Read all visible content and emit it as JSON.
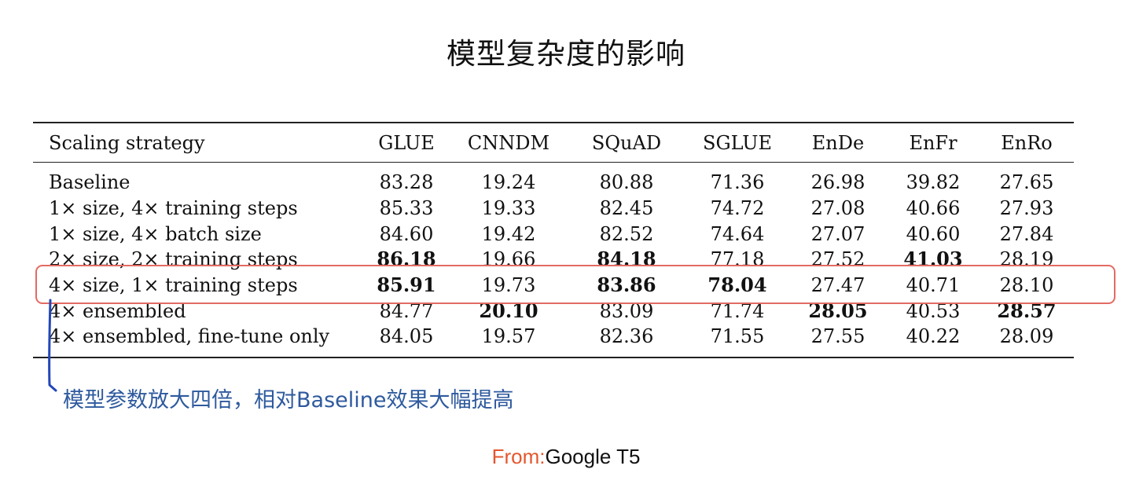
{
  "title": "模型复杂度的影响",
  "table": {
    "columns": [
      "Scaling strategy",
      "GLUE",
      "CNNDM",
      "SQuAD",
      "SGLUE",
      "EnDe",
      "EnFr",
      "EnRo"
    ],
    "rows": [
      {
        "strategy": "Baseline",
        "values": [
          "83.28",
          "19.24",
          "80.88",
          "71.36",
          "26.98",
          "39.82",
          "27.65"
        ],
        "bold": []
      },
      {
        "strategy": "1× size, 4× training steps",
        "values": [
          "85.33",
          "19.33",
          "82.45",
          "74.72",
          "27.08",
          "40.66",
          "27.93"
        ],
        "bold": []
      },
      {
        "strategy": "1× size, 4× batch size",
        "values": [
          "84.60",
          "19.42",
          "82.52",
          "74.64",
          "27.07",
          "40.60",
          "27.84"
        ],
        "bold": []
      },
      {
        "strategy": "2× size, 2× training steps",
        "values": [
          "86.18",
          "19.66",
          "84.18",
          "77.18",
          "27.52",
          "41.03",
          "28.19"
        ],
        "bold": [
          0,
          2,
          5
        ]
      },
      {
        "strategy": "4× size, 1× training steps",
        "values": [
          "85.91",
          "19.73",
          "83.86",
          "78.04",
          "27.47",
          "40.71",
          "28.10"
        ],
        "bold": [
          0,
          2,
          3
        ]
      },
      {
        "strategy": "4× ensembled",
        "values": [
          "84.77",
          "20.10",
          "83.09",
          "71.74",
          "28.05",
          "40.53",
          "28.57"
        ],
        "bold": [
          1,
          4,
          6
        ]
      },
      {
        "strategy": "4× ensembled, fine-tune only",
        "values": [
          "84.05",
          "19.57",
          "82.36",
          "71.55",
          "27.55",
          "40.22",
          "28.09"
        ],
        "bold": []
      }
    ]
  },
  "annotation": {
    "text": "模型参数放大四倍，相对Baseline效果大幅提高",
    "highlight_color": "#e36b63",
    "text_color": "#2e5a9e"
  },
  "source": {
    "prefix": "From:",
    "name": "Google T5",
    "prefix_color": "#e4572e"
  }
}
